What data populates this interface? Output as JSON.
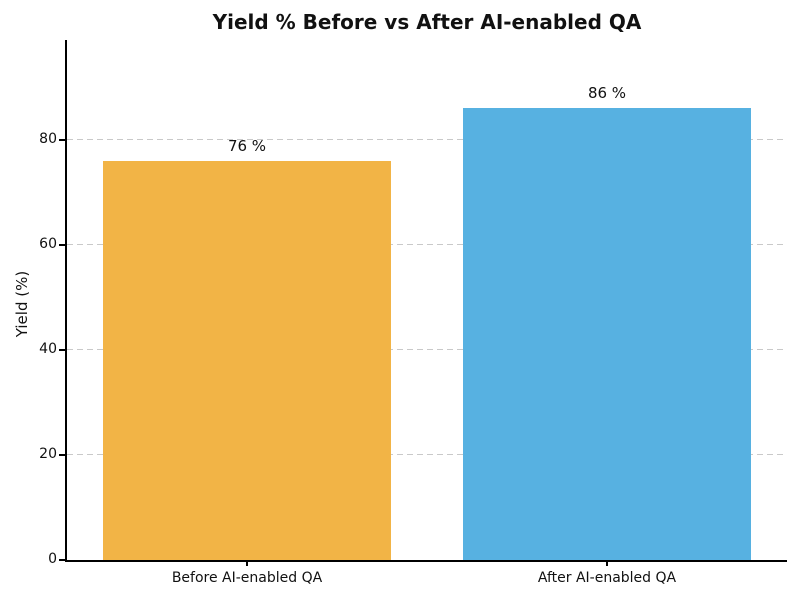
{
  "figure": {
    "background": "#ffffff",
    "text_color": "#111111",
    "spine_color": "#000000"
  },
  "chart_data": {
    "type": "bar",
    "title": "Yield % Before vs After AI-enabled QA",
    "xlabel": "",
    "ylabel": "Yield (%)",
    "categories": [
      "Before AI-enabled QA",
      "After AI-enabled QA"
    ],
    "values": [
      76,
      86
    ],
    "value_labels": [
      "76 %",
      "86 %"
    ],
    "bar_colors": [
      "#f2b446",
      "#57b1e1"
    ],
    "yticks": [
      0,
      20,
      40,
      60,
      80
    ],
    "ytick_labels": [
      "0",
      "20",
      "40",
      "60",
      "80"
    ],
    "ylim": [
      0,
      99
    ],
    "grid": "horizontal-dashed",
    "grid_color": "#c9c9c9",
    "legend": "none"
  }
}
